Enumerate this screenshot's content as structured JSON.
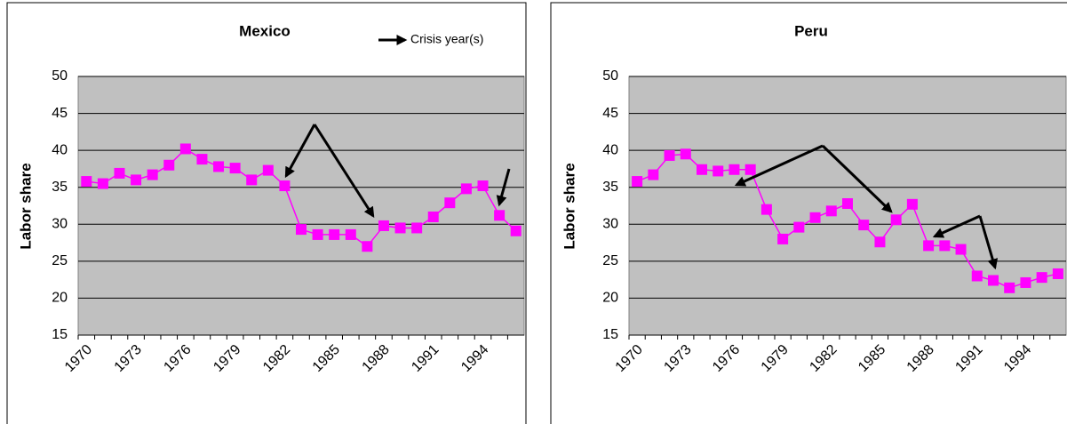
{
  "chart_data": [
    {
      "type": "line",
      "title": "Mexico",
      "ylabel": "Labor share",
      "annotation": "Crisis year(s)",
      "categories": [
        "1970",
        null,
        null,
        "1973",
        null,
        null,
        "1976",
        null,
        null,
        "1979",
        null,
        null,
        "1982",
        null,
        null,
        "1985",
        null,
        null,
        "1988",
        null,
        null,
        "1991",
        null,
        null,
        "1994",
        null,
        null
      ],
      "series": [
        {
          "color": "#ff00ff",
          "values": [
            35.8,
            35.5,
            36.9,
            36.0,
            36.7,
            38.0,
            40.2,
            38.8,
            37.8,
            37.6,
            36.0,
            37.3,
            35.2,
            29.3,
            28.6,
            28.6,
            28.6,
            27.0,
            29.8,
            29.5,
            29.5,
            31.0,
            32.9,
            34.8,
            35.2,
            31.2,
            29.1
          ]
        }
      ],
      "ylim": [
        15,
        50
      ],
      "yticks": [
        15,
        20,
        25,
        30,
        35,
        40,
        45,
        50
      ],
      "grid": true
    },
    {
      "type": "line",
      "title": "Peru",
      "ylabel": "Labor share",
      "categories": [
        "1970",
        null,
        null,
        "1973",
        null,
        null,
        "1976",
        null,
        null,
        "1979",
        null,
        null,
        "1982",
        null,
        null,
        "1985",
        null,
        null,
        "1988",
        null,
        null,
        "1991",
        null,
        null,
        "1994",
        null,
        null
      ],
      "series": [
        {
          "color": "#ff00ff",
          "values": [
            35.8,
            36.7,
            39.3,
            39.5,
            37.4,
            37.2,
            37.4,
            37.4,
            32.0,
            28.0,
            29.6,
            30.9,
            31.8,
            32.8,
            29.9,
            27.6,
            30.6,
            32.7,
            27.1,
            27.1,
            26.6,
            23.0,
            22.4,
            21.4,
            22.1,
            22.8,
            23.3
          ]
        }
      ],
      "ylim": [
        15,
        50
      ],
      "yticks": [
        15,
        20,
        25,
        30,
        35,
        40,
        45,
        50
      ],
      "grid": true
    }
  ]
}
